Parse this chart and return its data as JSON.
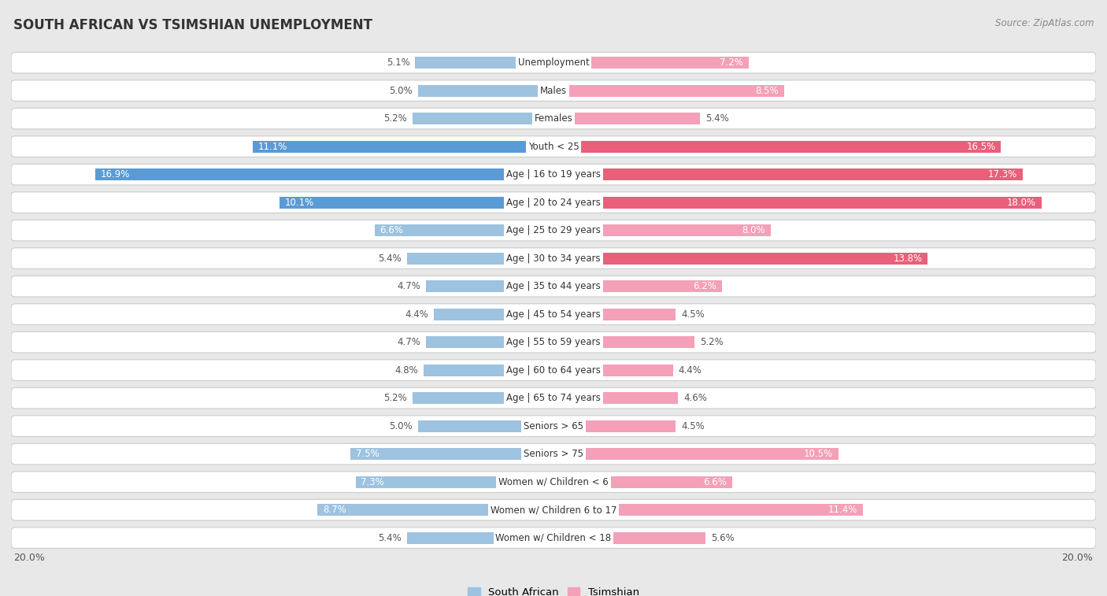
{
  "title": "SOUTH AFRICAN VS TSIMSHIAN UNEMPLOYMENT",
  "source": "Source: ZipAtlas.com",
  "categories": [
    "Unemployment",
    "Males",
    "Females",
    "Youth < 25",
    "Age | 16 to 19 years",
    "Age | 20 to 24 years",
    "Age | 25 to 29 years",
    "Age | 30 to 34 years",
    "Age | 35 to 44 years",
    "Age | 45 to 54 years",
    "Age | 55 to 59 years",
    "Age | 60 to 64 years",
    "Age | 65 to 74 years",
    "Seniors > 65",
    "Seniors > 75",
    "Women w/ Children < 6",
    "Women w/ Children 6 to 17",
    "Women w/ Children < 18"
  ],
  "south_african": [
    5.1,
    5.0,
    5.2,
    11.1,
    16.9,
    10.1,
    6.6,
    5.4,
    4.7,
    4.4,
    4.7,
    4.8,
    5.2,
    5.0,
    7.5,
    7.3,
    8.7,
    5.4
  ],
  "tsimshian": [
    7.2,
    8.5,
    5.4,
    16.5,
    17.3,
    18.0,
    8.0,
    13.8,
    6.2,
    4.5,
    5.2,
    4.4,
    4.6,
    4.5,
    10.5,
    6.6,
    11.4,
    5.6
  ],
  "south_african_color": "#9dc3e0",
  "tsimshian_color": "#f4a0b8",
  "south_african_dark_color": "#5b9bd5",
  "tsimshian_dark_color": "#e8607a",
  "page_bg": "#e8e8e8",
  "row_bg": "#ffffff",
  "row_border": "#cccccc",
  "max_val": 20.0,
  "legend_south_african": "South African",
  "legend_tsimshian": "Tsimshian",
  "label_fontsize": 8.5,
  "value_fontsize": 8.5,
  "title_fontsize": 12,
  "source_fontsize": 8.5
}
